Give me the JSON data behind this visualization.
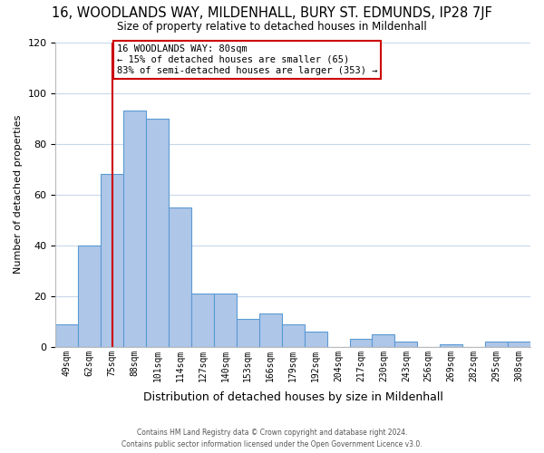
{
  "title": "16, WOODLANDS WAY, MILDENHALL, BURY ST. EDMUNDS, IP28 7JF",
  "subtitle": "Size of property relative to detached houses in Mildenhall",
  "xlabel": "Distribution of detached houses by size in Mildenhall",
  "ylabel": "Number of detached properties",
  "bar_labels": [
    "49sqm",
    "62sqm",
    "75sqm",
    "88sqm",
    "101sqm",
    "114sqm",
    "127sqm",
    "140sqm",
    "153sqm",
    "166sqm",
    "179sqm",
    "192sqm",
    "204sqm",
    "217sqm",
    "230sqm",
    "243sqm",
    "256sqm",
    "269sqm",
    "282sqm",
    "295sqm",
    "308sqm"
  ],
  "bar_values": [
    9,
    40,
    68,
    93,
    90,
    55,
    21,
    21,
    11,
    13,
    9,
    6,
    0,
    3,
    5,
    2,
    0,
    1,
    0,
    2,
    2
  ],
  "bar_color": "#aec6e8",
  "bar_edge_color": "#5b9bd5",
  "ylim": [
    0,
    120
  ],
  "yticks": [
    0,
    20,
    40,
    60,
    80,
    100,
    120
  ],
  "vline_x": 2,
  "vline_color": "#cc0000",
  "annotation_title": "16 WOODLANDS WAY: 80sqm",
  "annotation_line1": "← 15% of detached houses are smaller (65)",
  "annotation_line2": "83% of semi-detached houses are larger (353) →",
  "annotation_box_color": "#ffffff",
  "annotation_box_edge": "#cc0000",
  "footer1": "Contains HM Land Registry data © Crown copyright and database right 2024.",
  "footer2": "Contains public sector information licensed under the Open Government Licence v3.0.",
  "background_color": "#ffffff",
  "grid_color": "#c8d8e8"
}
